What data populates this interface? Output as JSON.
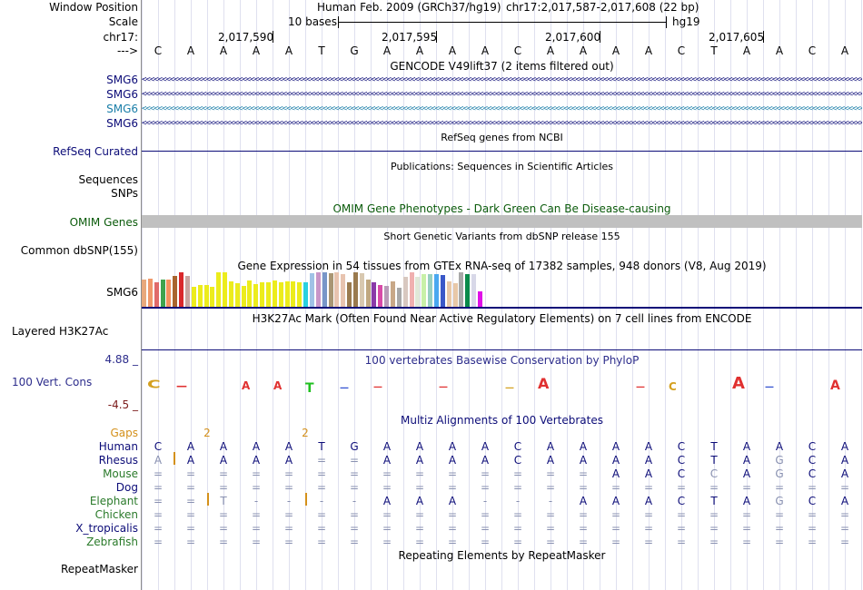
{
  "window_position": {
    "label": "Window Position",
    "assembly": "Human Feb. 2009 (GRCh37/hg19)",
    "position": "chr17:2,017,587-2,017,608 (22 bp)"
  },
  "scale": {
    "label": "Scale",
    "text": "10 bases",
    "assembly": "hg19"
  },
  "coords": {
    "label": "chr17:",
    "ticks": [
      "2,017,590",
      "2,017,595",
      "2,017,600",
      "2,017,605"
    ]
  },
  "sequence": {
    "label": "--->",
    "bases": [
      "C",
      "A",
      "A",
      "A",
      "A",
      "T",
      "G",
      "A",
      "A",
      "A",
      "A",
      "C",
      "A",
      "A",
      "A",
      "A",
      "C",
      "T",
      "A",
      "A",
      "C",
      "A"
    ]
  },
  "gencode": {
    "title": "GENCODE V49lift37 (2 items filtered out)",
    "tracks": [
      {
        "label": "SMG6",
        "color": "#0c0c78"
      },
      {
        "label": "SMG6",
        "color": "#0c0c78"
      },
      {
        "label": "SMG6",
        "color": "#1a7ea8"
      },
      {
        "label": "SMG6",
        "color": "#0c0c78"
      }
    ]
  },
  "refseq": {
    "title": "RefSeq genes from NCBI",
    "label": "RefSeq Curated",
    "color": "#0c0c78"
  },
  "publications": {
    "title": "Publications: Sequences in Scientific Articles",
    "labels": [
      "Sequences",
      "SNPs"
    ]
  },
  "omim": {
    "title": "OMIM Gene Phenotypes - Dark Green Can Be Disease-causing",
    "label": "OMIM Genes",
    "color": "#0b5b0b",
    "bar_color": "#c0c0c0"
  },
  "dbsnp": {
    "title": "Short Genetic Variants from dbSNP release 155",
    "label": "Common dbSNP(155)"
  },
  "gtex": {
    "title": "Gene Expression in 54 tissues from GTEx RNA-seq of 17382 samples, 948 donors (V8, Aug 2019)",
    "label": "SMG6",
    "bars": [
      {
        "v": 0.78,
        "c": "#e8a87c"
      },
      {
        "v": 0.82,
        "c": "#f0986a"
      },
      {
        "v": 0.72,
        "c": "#e06a6a"
      },
      {
        "v": 0.78,
        "c": "#3fa34d"
      },
      {
        "v": 0.8,
        "c": "#f5925e"
      },
      {
        "v": 0.9,
        "c": "#a9642e"
      },
      {
        "v": 1.0,
        "c": "#d9282c"
      },
      {
        "v": 0.9,
        "c": "#c8a4a0"
      },
      {
        "v": 0.58,
        "c": "#ecec1c"
      },
      {
        "v": 0.64,
        "c": "#ecec1c"
      },
      {
        "v": 0.64,
        "c": "#ecec1c"
      },
      {
        "v": 0.58,
        "c": "#ecec1c"
      },
      {
        "v": 1.0,
        "c": "#ecec1c"
      },
      {
        "v": 1.0,
        "c": "#ecec1c"
      },
      {
        "v": 0.74,
        "c": "#ecec1c"
      },
      {
        "v": 0.68,
        "c": "#ecec1c"
      },
      {
        "v": 0.6,
        "c": "#ecec1c"
      },
      {
        "v": 0.76,
        "c": "#ecec1c"
      },
      {
        "v": 0.66,
        "c": "#ecec1c"
      },
      {
        "v": 0.7,
        "c": "#ecec1c"
      },
      {
        "v": 0.7,
        "c": "#ecec1c"
      },
      {
        "v": 0.76,
        "c": "#ecec1c"
      },
      {
        "v": 0.72,
        "c": "#ecec1c"
      },
      {
        "v": 0.74,
        "c": "#ecec1c"
      },
      {
        "v": 0.74,
        "c": "#ecec1c"
      },
      {
        "v": 0.72,
        "c": "#ecec1c"
      },
      {
        "v": 0.72,
        "c": "#2ad0e0"
      },
      {
        "v": 0.98,
        "c": "#a0c2e6"
      },
      {
        "v": 1.0,
        "c": "#c896c8"
      },
      {
        "v": 1.0,
        "c": "#7896c8"
      },
      {
        "v": 0.98,
        "c": "#a99674"
      },
      {
        "v": 1.0,
        "c": "#e8c4b0"
      },
      {
        "v": 0.96,
        "c": "#e8c4b0"
      },
      {
        "v": 0.72,
        "c": "#9a7a4e"
      },
      {
        "v": 1.0,
        "c": "#9a7a4e"
      },
      {
        "v": 0.98,
        "c": "#d8c8b0"
      },
      {
        "v": 0.8,
        "c": "#c0a880"
      },
      {
        "v": 0.7,
        "c": "#8a3aa8"
      },
      {
        "v": 0.62,
        "c": "#d84aa8"
      },
      {
        "v": 0.6,
        "c": "#b89ab8"
      },
      {
        "v": 0.74,
        "c": "#c8a888"
      },
      {
        "v": 0.56,
        "c": "#a8a8a8"
      },
      {
        "v": 0.86,
        "c": "#d8c8c0"
      },
      {
        "v": 1.0,
        "c": "#f0b0b0"
      },
      {
        "v": 0.86,
        "c": "#e0e8d8"
      },
      {
        "v": 0.94,
        "c": "#c8f0a8"
      },
      {
        "v": 0.94,
        "c": "#98d0c0"
      },
      {
        "v": 0.96,
        "c": "#4aa8f0"
      },
      {
        "v": 0.92,
        "c": "#3a58c8"
      },
      {
        "v": 0.74,
        "c": "#e8c8a8"
      },
      {
        "v": 0.68,
        "c": "#e8c8a8"
      },
      {
        "v": 1.0,
        "c": "#a8a8a8"
      },
      {
        "v": 0.94,
        "c": "#0a8a4a"
      },
      {
        "v": 0.94,
        "c": "#d8d8e8"
      },
      {
        "v": 0.46,
        "c": "#e010e8"
      }
    ]
  },
  "h3k27ac": {
    "title": "H3K27Ac Mark (Often Found Near Active Regulatory Elements) on 7 cell lines from ENCODE",
    "label": "Layered H3K27Ac"
  },
  "phylop": {
    "title": "100 vertebrates Basewise Conservation by PhyloP",
    "label": "100 Vert. Cons",
    "max": "4.88 _",
    "min": "-4.5 _",
    "color": "#2d2d8c"
  },
  "multiz": {
    "title": "Multiz Alignments of 100 Vertebrates",
    "gaps_label": "Gaps",
    "gap_counts": [
      "2",
      "2"
    ],
    "species": [
      {
        "name": "Human",
        "color": "#0c0c78",
        "bases": [
          "C",
          "A",
          "A",
          "A",
          "A",
          "T",
          "G",
          "A",
          "A",
          "A",
          "A",
          "C",
          "A",
          "A",
          "A",
          "A",
          "C",
          "T",
          "A",
          "A",
          "C",
          "A"
        ]
      },
      {
        "name": "Rhesus",
        "color": "#0c0c78",
        "bases": [
          "A",
          "A",
          "A",
          "A",
          "A",
          "=",
          "=",
          "A",
          "A",
          "A",
          "A",
          "C",
          "A",
          "A",
          "A",
          "A",
          "C",
          "T",
          "A",
          "G",
          "C",
          "A"
        ]
      },
      {
        "name": "Mouse",
        "color": "#2a7a2a",
        "bases": [
          "=",
          "=",
          "=",
          "=",
          "=",
          "=",
          "=",
          "=",
          "=",
          "=",
          "=",
          "=",
          "=",
          "=",
          "A",
          "A",
          "C",
          "C",
          "A",
          "G",
          "C",
          "A"
        ]
      },
      {
        "name": "Dog",
        "color": "#0c0c78",
        "bases": [
          "=",
          "=",
          "=",
          "=",
          "=",
          "=",
          "=",
          "=",
          "=",
          "=",
          "=",
          "=",
          "=",
          "=",
          "=",
          "=",
          "=",
          "=",
          "=",
          "=",
          "=",
          "="
        ]
      },
      {
        "name": "Elephant",
        "color": "#2a7a2a",
        "bases": [
          "=",
          "=",
          "T",
          "-",
          "-",
          "-",
          "-",
          "A",
          "A",
          "A",
          "-",
          "-",
          "-",
          "A",
          "A",
          "A",
          "C",
          "T",
          "A",
          "G",
          "C",
          "A"
        ]
      },
      {
        "name": "Chicken",
        "color": "#2a7a2a",
        "bases": [
          "=",
          "=",
          "=",
          "=",
          "=",
          "=",
          "=",
          "=",
          "=",
          "=",
          "=",
          "=",
          "=",
          "=",
          "=",
          "=",
          "=",
          "=",
          "=",
          "=",
          "=",
          "="
        ]
      },
      {
        "name": "X_tropicalis",
        "color": "#0c0c78",
        "bases": [
          "=",
          "=",
          "=",
          "=",
          "=",
          "=",
          "=",
          "=",
          "=",
          "=",
          "=",
          "=",
          "=",
          "=",
          "=",
          "=",
          "=",
          "=",
          "=",
          "=",
          "=",
          "="
        ]
      },
      {
        "name": "Zebrafish",
        "color": "#2a7a2a",
        "bases": [
          "=",
          "=",
          "=",
          "=",
          "=",
          "=",
          "=",
          "=",
          "=",
          "=",
          "=",
          "=",
          "=",
          "=",
          "=",
          "=",
          "=",
          "=",
          "=",
          "=",
          "=",
          "="
        ]
      }
    ]
  },
  "repeatmasker": {
    "title": "Repeating Elements by RepeatMasker",
    "label": "RepeatMasker"
  }
}
